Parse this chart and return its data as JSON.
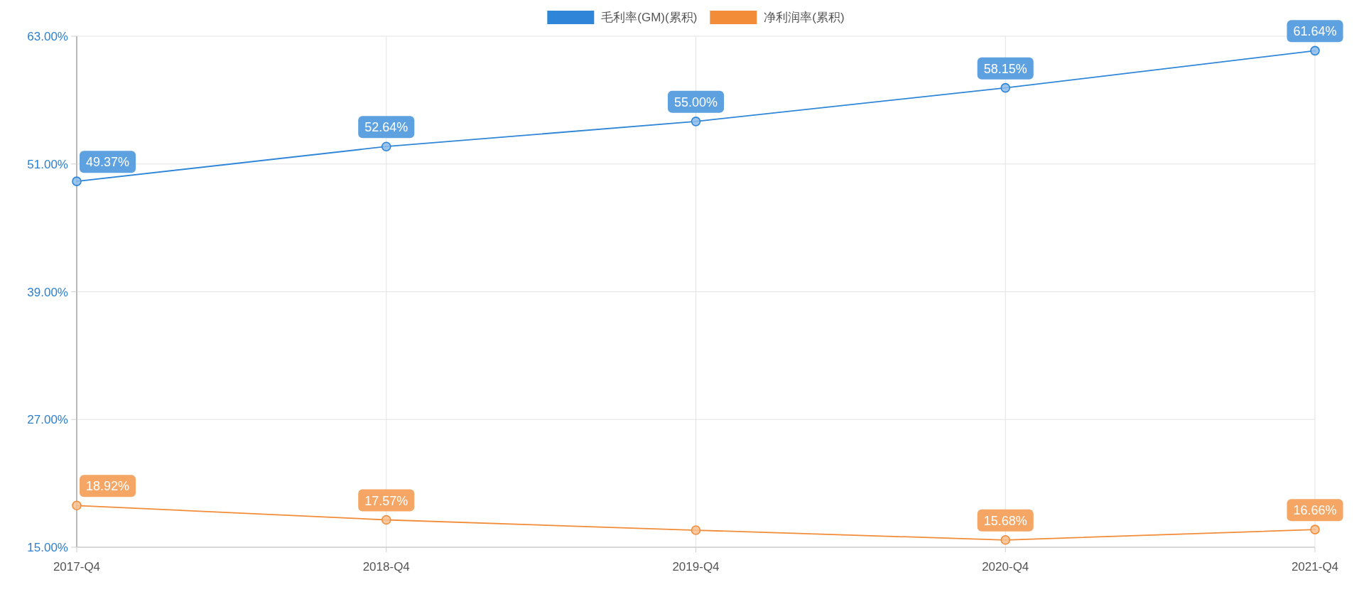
{
  "chart_data": {
    "type": "line",
    "categories": [
      "2017-Q4",
      "2018-Q4",
      "2019-Q4",
      "2020-Q4",
      "2021-Q4"
    ],
    "series": [
      {
        "name": "毛利率(GM)(累积)",
        "color": "#2f86d8",
        "values": [
          49.37,
          52.64,
          55.0,
          58.15,
          61.64
        ],
        "value_labels": [
          "49.37%",
          "52.64%",
          "55.00%",
          "58.15%",
          "61.64%"
        ]
      },
      {
        "name": "净利润率(累积)",
        "color": "#f28c38",
        "values": [
          18.92,
          17.57,
          16.6,
          15.68,
          16.66
        ],
        "value_labels": [
          "18.92%",
          "17.57%",
          null,
          "15.68%",
          "16.66%"
        ]
      }
    ],
    "ylim": [
      15,
      63
    ],
    "yticks": [
      {
        "value": 15,
        "label": "15.00%"
      },
      {
        "value": 27,
        "label": "27.00%"
      },
      {
        "value": 39,
        "label": "39.00%"
      },
      {
        "value": 51,
        "label": "51.00%"
      },
      {
        "value": 63,
        "label": "63.00%"
      }
    ],
    "grid": true,
    "legend": "top",
    "marker": "circle",
    "line_style": "solid"
  }
}
